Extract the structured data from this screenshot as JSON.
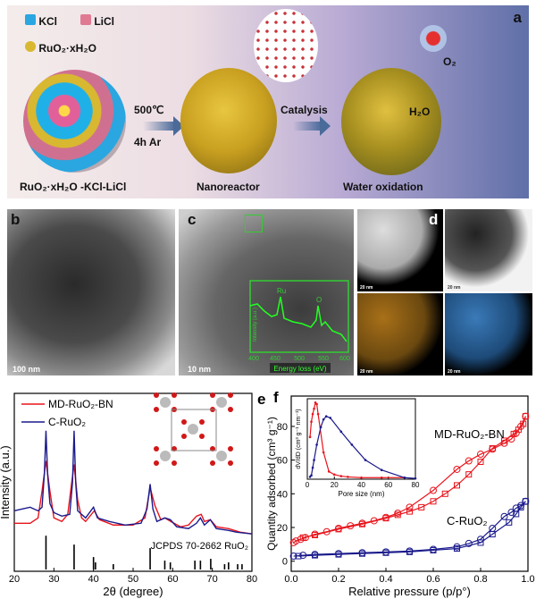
{
  "panel_a": {
    "letter": "a",
    "legend": {
      "kcl": "KCl",
      "licl": "LiCl",
      "ruo2": "RuO₂·xH₂O"
    },
    "step1": {
      "temp": "500℃",
      "cond": "4h  Ar"
    },
    "step2": "Catalysis",
    "captions": [
      "RuO₂·xH₂O -KCl-LiCl",
      "Nanoreactor",
      "Water oxidation"
    ],
    "h2o": "H₂O",
    "o2": "O₂",
    "colors": {
      "kcl": "#2aa6e0",
      "licl": "#e07a92",
      "ruo2": "#d8b830"
    }
  },
  "panel_b": {
    "letter": "b",
    "scale": "100 nm"
  },
  "panel_c": {
    "letter": "c",
    "scale": "10 nm",
    "inset": {
      "xlabel": "Energy loss (eV)",
      "ylabel": "Intensity (a.u.)",
      "xticks": [
        "400",
        "450",
        "500",
        "550",
        "600"
      ],
      "peaks": [
        "Ru",
        "O"
      ]
    }
  },
  "panel_d": {
    "letter": "d",
    "scales": [
      "20 nm",
      "20 nm",
      "20 nm",
      "20 nm"
    ]
  },
  "chart_data": [
    {
      "type": "line",
      "panel": "e",
      "xlabel": "2θ (degree)",
      "ylabel": "Intensity (a.u.)",
      "xlim": [
        20,
        80
      ],
      "ylim": [
        0,
        1
      ],
      "xticks": [
        20,
        30,
        40,
        50,
        60,
        70,
        80
      ],
      "legend": "top-left",
      "reference_label": "JCPDS 70-2662 RuO₂",
      "reference_lines": [
        [
          28.0,
          0.19
        ],
        [
          35.1,
          0.14
        ],
        [
          40.0,
          0.07
        ],
        [
          40.5,
          0.04
        ],
        [
          45.0,
          0.03
        ],
        [
          54.3,
          0.12
        ],
        [
          58.0,
          0.05
        ],
        [
          59.4,
          0.04
        ],
        [
          65.6,
          0.05
        ],
        [
          67.0,
          0.05
        ],
        [
          69.6,
          0.06
        ],
        [
          73.1,
          0.03
        ],
        [
          74.1,
          0.04
        ],
        [
          76.4,
          0.03
        ],
        [
          77.5,
          0.03
        ]
      ],
      "series": [
        {
          "name": "MD-RuO₂-BN",
          "color": "#e8141c",
          "points": [
            [
              20,
              0.27
            ],
            [
              24,
              0.27
            ],
            [
              26,
              0.3
            ],
            [
              27,
              0.45
            ],
            [
              28,
              0.62
            ],
            [
              29,
              0.45
            ],
            [
              30,
              0.3
            ],
            [
              32,
              0.28
            ],
            [
              33.5,
              0.32
            ],
            [
              34.5,
              0.5
            ],
            [
              35.1,
              0.6
            ],
            [
              36,
              0.4
            ],
            [
              37,
              0.3
            ],
            [
              38,
              0.28
            ],
            [
              40.2,
              0.34
            ],
            [
              41.5,
              0.29
            ],
            [
              45,
              0.26
            ],
            [
              50,
              0.26
            ],
            [
              53,
              0.3
            ],
            [
              54.3,
              0.47
            ],
            [
              55.5,
              0.37
            ],
            [
              57,
              0.29
            ],
            [
              58,
              0.3
            ],
            [
              59.5,
              0.28
            ],
            [
              62,
              0.25
            ],
            [
              64,
              0.26
            ],
            [
              66,
              0.31
            ],
            [
              67.2,
              0.32
            ],
            [
              68,
              0.28
            ],
            [
              69.5,
              0.29
            ],
            [
              71,
              0.25
            ],
            [
              74,
              0.24
            ],
            [
              77,
              0.22
            ],
            [
              80,
              0.21
            ]
          ]
        },
        {
          "name": "C-RuO₂",
          "color": "#1a1a8c",
          "points": [
            [
              20,
              0.34
            ],
            [
              22,
              0.35
            ],
            [
              24,
              0.36
            ],
            [
              26,
              0.34
            ],
            [
              27,
              0.36
            ],
            [
              27.6,
              0.55
            ],
            [
              28,
              0.79
            ],
            [
              28.4,
              0.55
            ],
            [
              29,
              0.38
            ],
            [
              30,
              0.33
            ],
            [
              32,
              0.31
            ],
            [
              34,
              0.32
            ],
            [
              34.7,
              0.5
            ],
            [
              35.1,
              0.79
            ],
            [
              35.5,
              0.5
            ],
            [
              36,
              0.34
            ],
            [
              38,
              0.3
            ],
            [
              40,
              0.36
            ],
            [
              41,
              0.3
            ],
            [
              44,
              0.28
            ],
            [
              48,
              0.26
            ],
            [
              52,
              0.27
            ],
            [
              53.5,
              0.35
            ],
            [
              54.3,
              0.49
            ],
            [
              55,
              0.35
            ],
            [
              56,
              0.28
            ],
            [
              58,
              0.3
            ],
            [
              59.4,
              0.29
            ],
            [
              61,
              0.25
            ],
            [
              64,
              0.24
            ],
            [
              66,
              0.27
            ],
            [
              67,
              0.3
            ],
            [
              68,
              0.26
            ],
            [
              69.5,
              0.29
            ],
            [
              71,
              0.24
            ],
            [
              74,
              0.23
            ],
            [
              76,
              0.22
            ],
            [
              80,
              0.21
            ]
          ]
        }
      ]
    },
    {
      "type": "scatter",
      "panel": "f",
      "xlabel": "Relative pressure (p/p°)",
      "ylabel": "Quantity adsorbed (cm³ g⁻¹)",
      "xlim": [
        0,
        1
      ],
      "ylim": [
        -6,
        98
      ],
      "xticks": [
        "0.0",
        "0.2",
        "0.4",
        "0.6",
        "0.8",
        "1.0"
      ],
      "yticks": [
        0,
        20,
        40,
        60,
        80
      ],
      "series": [
        {
          "name": "MD-RuO₂-BN",
          "branch": "adsorption",
          "marker": "circle",
          "color": "#e8141c",
          "points": [
            [
              0.01,
              11
            ],
            [
              0.02,
              12
            ],
            [
              0.04,
              13
            ],
            [
              0.06,
              14
            ],
            [
              0.1,
              16
            ],
            [
              0.15,
              17.5
            ],
            [
              0.2,
              19.5
            ],
            [
              0.25,
              21
            ],
            [
              0.3,
              22.5
            ],
            [
              0.35,
              24
            ],
            [
              0.4,
              26
            ],
            [
              0.45,
              28.5
            ],
            [
              0.5,
              32
            ],
            [
              0.6,
              42
            ],
            [
              0.7,
              54.5
            ],
            [
              0.75,
              59.5
            ],
            [
              0.8,
              63.5
            ],
            [
              0.85,
              66.5
            ],
            [
              0.9,
              70
            ],
            [
              0.93,
              72.5
            ],
            [
              0.95,
              76
            ],
            [
              0.97,
              80
            ],
            [
              0.99,
              86
            ]
          ]
        },
        {
          "name": "MD-RuO₂-BN",
          "branch": "desorption",
          "marker": "square",
          "color": "#e8141c",
          "points": [
            [
              0.99,
              86
            ],
            [
              0.98,
              81.5
            ],
            [
              0.96,
              78
            ],
            [
              0.94,
              75.5
            ],
            [
              0.9,
              71.5
            ],
            [
              0.85,
              67
            ],
            [
              0.8,
              59
            ],
            [
              0.75,
              51.5
            ],
            [
              0.7,
              45
            ],
            [
              0.65,
              40
            ],
            [
              0.6,
              35.5
            ],
            [
              0.55,
              32
            ],
            [
              0.5,
              29.5
            ],
            [
              0.45,
              27.5
            ],
            [
              0.4,
              25.5
            ],
            [
              0.3,
              22
            ],
            [
              0.2,
              19
            ],
            [
              0.1,
              15.5
            ],
            [
              0.05,
              14
            ]
          ]
        },
        {
          "name": "C-RuO₂",
          "branch": "adsorption",
          "marker": "circle",
          "color": "#1a1a8c",
          "points": [
            [
              0.01,
              3
            ],
            [
              0.05,
              3.5
            ],
            [
              0.1,
              4
            ],
            [
              0.2,
              4.5
            ],
            [
              0.3,
              5
            ],
            [
              0.4,
              5.5
            ],
            [
              0.5,
              6
            ],
            [
              0.6,
              7
            ],
            [
              0.7,
              8.5
            ],
            [
              0.75,
              10.5
            ],
            [
              0.8,
              13
            ],
            [
              0.85,
              19.5
            ],
            [
              0.9,
              26.5
            ],
            [
              0.93,
              29
            ],
            [
              0.95,
              31.5
            ],
            [
              0.97,
              33
            ],
            [
              0.99,
              35.5
            ]
          ]
        },
        {
          "name": "C-RuO₂",
          "branch": "desorption",
          "marker": "square",
          "color": "#1a1a8c",
          "points": [
            [
              0.99,
              35.5
            ],
            [
              0.97,
              32
            ],
            [
              0.95,
              28
            ],
            [
              0.92,
              23
            ],
            [
              0.85,
              16
            ],
            [
              0.8,
              11
            ],
            [
              0.7,
              7.5
            ],
            [
              0.6,
              6.5
            ],
            [
              0.5,
              5.5
            ],
            [
              0.4,
              5
            ],
            [
              0.3,
              4.5
            ],
            [
              0.2,
              4
            ],
            [
              0.1,
              3.5
            ],
            [
              0.03,
              3
            ]
          ]
        }
      ],
      "inset": {
        "type": "line",
        "xlabel": "Pore size (nm)",
        "ylabel": "dV/dD (cm³ g⁻¹ nm⁻¹)",
        "xlim": [
          0,
          80
        ],
        "ylim": [
          0,
          1.05
        ],
        "xticks": [
          0,
          20,
          40,
          60,
          80
        ],
        "series": [
          {
            "name": "MD-RuO₂-BN",
            "color": "#e8141c",
            "points": [
              [
                2,
                0.55
              ],
              [
                3,
                0.75
              ],
              [
                4,
                0.85
              ],
              [
                5,
                0.92
              ],
              [
                6,
                1.0
              ],
              [
                7,
                0.98
              ],
              [
                8,
                0.85
              ],
              [
                12,
                0.35
              ],
              [
                16,
                0.1
              ],
              [
                20,
                0.06
              ],
              [
                25,
                0.04
              ],
              [
                30,
                0.03
              ],
              [
                40,
                0.02
              ],
              [
                55,
                0.02
              ],
              [
                72,
                0.02
              ]
            ]
          },
          {
            "name": "C-RuO₂",
            "color": "#1a1a8c",
            "points": [
              [
                2,
                0.03
              ],
              [
                3,
                0.05
              ],
              [
                4,
                0.15
              ],
              [
                5,
                0.25
              ],
              [
                7,
                0.45
              ],
              [
                10,
                0.68
              ],
              [
                12,
                0.78
              ],
              [
                14,
                0.82
              ],
              [
                17,
                0.8
              ],
              [
                25,
                0.62
              ],
              [
                33,
                0.45
              ],
              [
                43,
                0.25
              ],
              [
                55,
                0.12
              ],
              [
                72,
                0.02
              ],
              [
                80,
                0.01
              ]
            ]
          }
        ]
      }
    }
  ],
  "panel_e_letter": "e",
  "panel_f_letter": "f"
}
